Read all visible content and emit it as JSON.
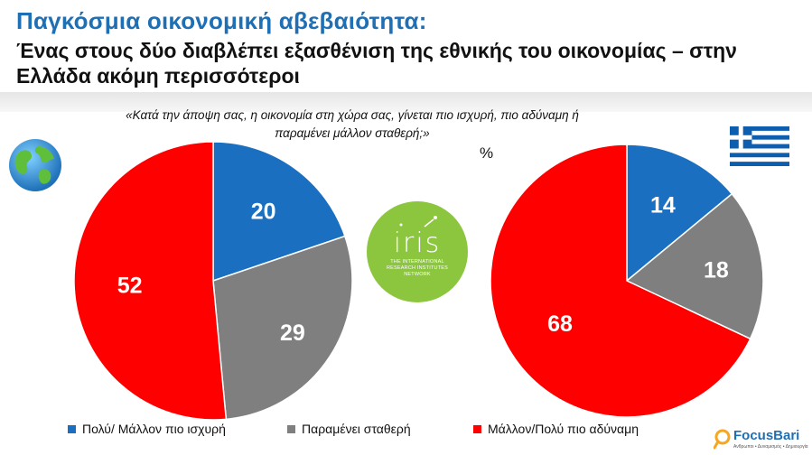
{
  "header": {
    "title": "Παγκόσμια οικονομική αβεβαιότητα:",
    "subtitle": "Ένας στους δύο διαβλέπει εξασθένιση της εθνικής του οικονομίας – στην Ελλάδα ακόμη περισσότεροι"
  },
  "question": "«Κατά την άποψη σας, η οικονομία στη χώρα σας, γίνεται πιο ισχυρή, πιο αδύναμη ή παραμένει μάλλον σταθερή;»",
  "unit": "%",
  "colors": {
    "stronger": "#1a6fc1",
    "stable": "#7f7f7f",
    "weaker": "#ff0000",
    "title": "#1f6fb5"
  },
  "icons": {
    "left": "globe-icon",
    "right": "greek-flag-icon"
  },
  "logos": {
    "iris_word": "iris",
    "iris_sub": [
      "THE INTERNATIONAL",
      "RESEARCH INSTITUTES",
      "NETWORK"
    ],
    "focus_name": "FocusBari",
    "focus_tag": "Ανθρωποι • Δυναμισμός • Δημιουργία"
  },
  "chart_data": [
    {
      "type": "pie",
      "categories": [
        "Πολύ/ Μάλλον πιο ισχυρή",
        "Παραμένει σταθερή",
        "Μάλλον/Πολύ πιο αδύναμη"
      ],
      "values": [
        20,
        29,
        52
      ]
    },
    {
      "type": "pie",
      "categories": [
        "Πολύ/ Μάλλον πιο ισχυρή",
        "Παραμένει σταθερή",
        "Μάλλον/Πολύ πιο αδύναμη"
      ],
      "values": [
        14,
        18,
        68
      ]
    }
  ],
  "legend": [
    {
      "label": "Πολύ/ Μάλλον πιο ισχυρή",
      "color": "#1a6fc1"
    },
    {
      "label": "Παραμένει σταθερή",
      "color": "#7f7f7f"
    },
    {
      "label": "Μάλλον/Πολύ πιο αδύναμη",
      "color": "#ff0000"
    }
  ]
}
